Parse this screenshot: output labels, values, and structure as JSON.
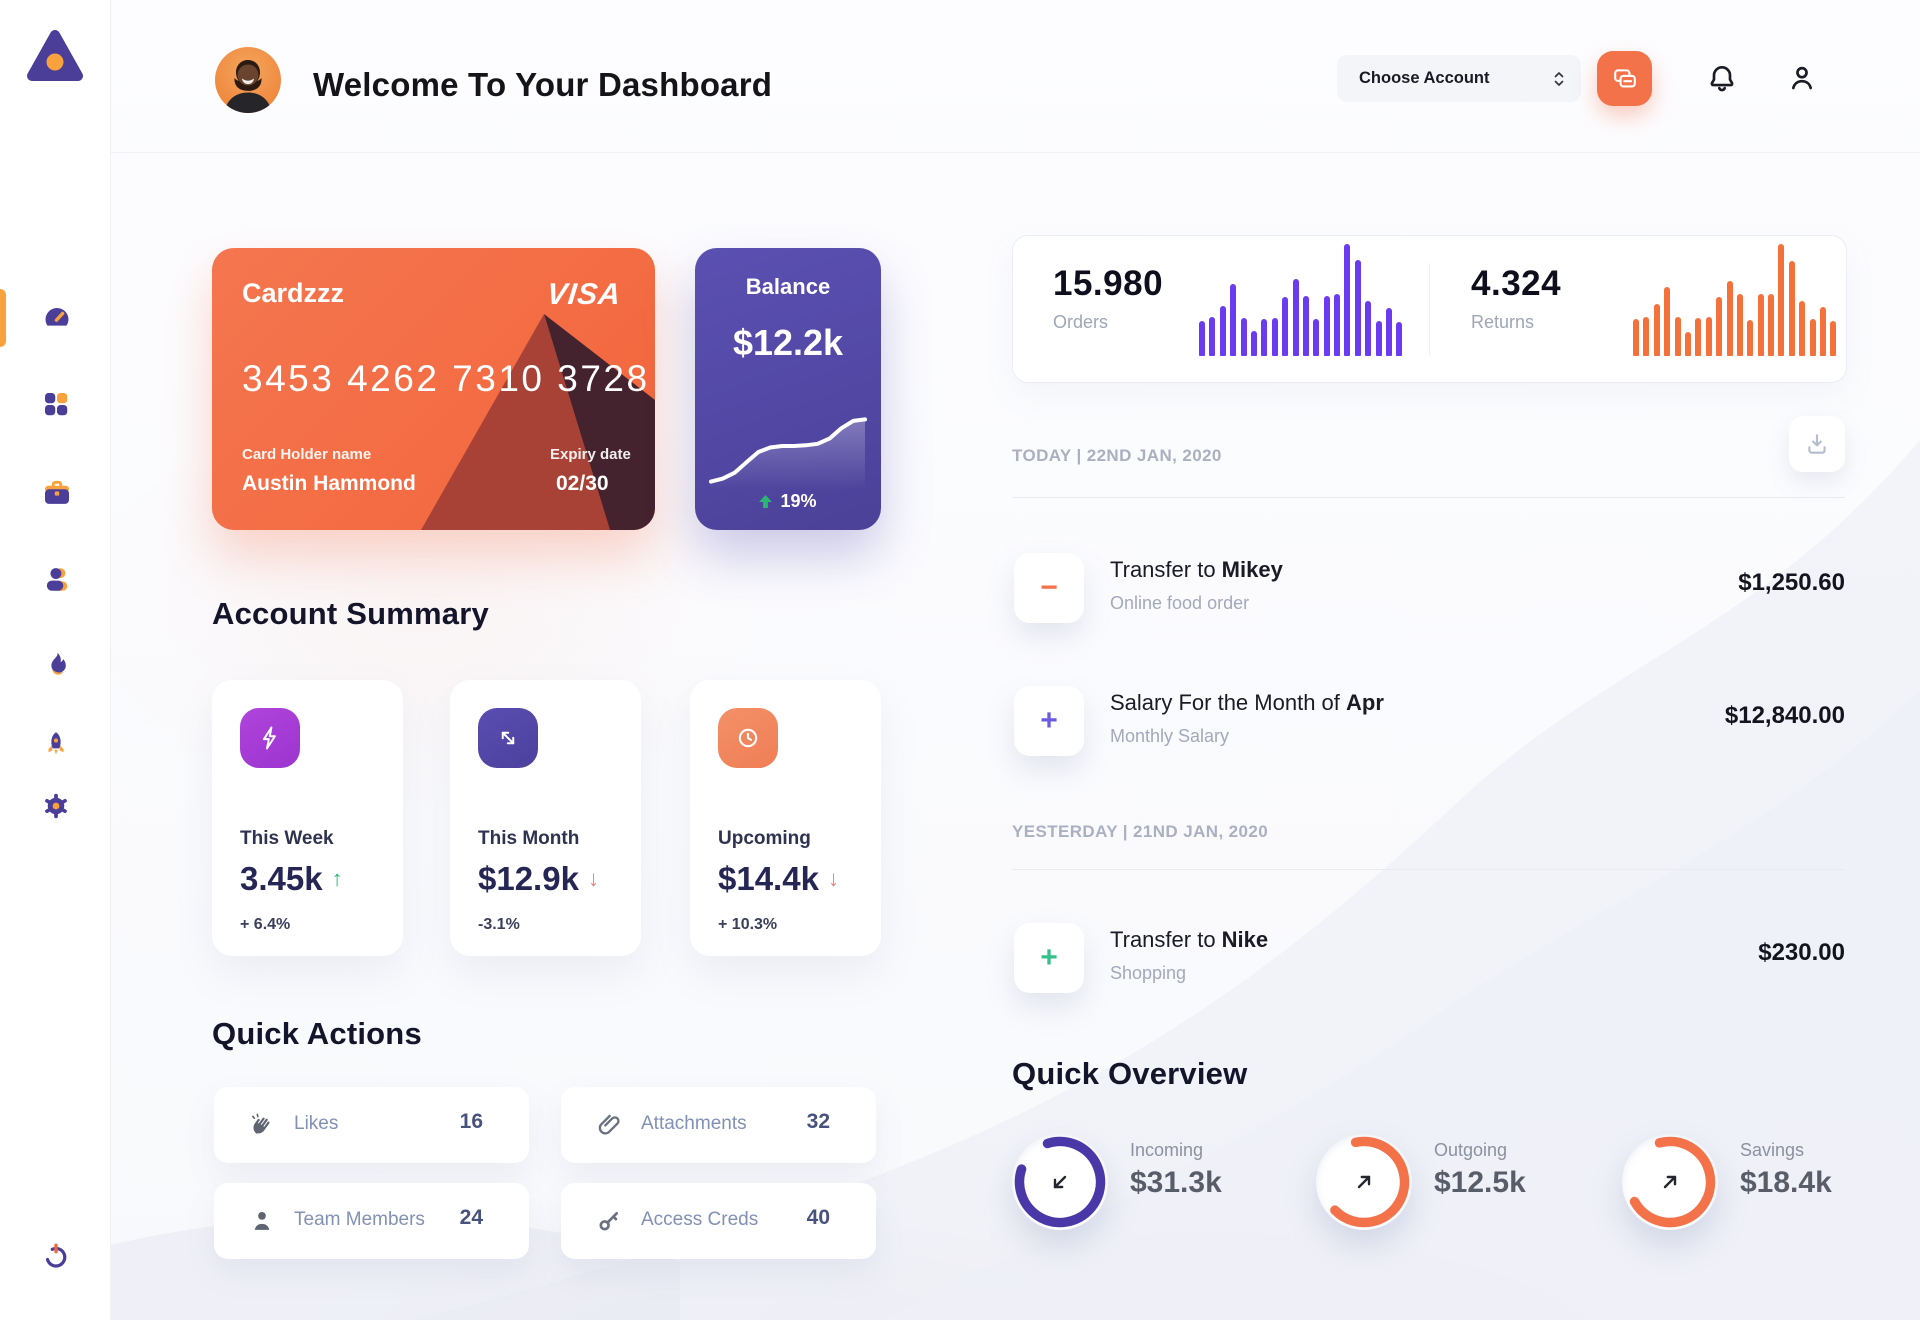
{
  "header": {
    "title": "Welcome To Your Dashboard",
    "account_select": "Choose Account"
  },
  "sidebar": {
    "items": [
      "dashboard",
      "apps",
      "portfolio",
      "team",
      "activity",
      "launch",
      "settings"
    ],
    "footer": "power"
  },
  "credit_card": {
    "name": "Cardzzz",
    "brand": "VISA",
    "number": "3453 4262 7310 3728",
    "holder_label": "Card Holder name",
    "holder_name": "Austin Hammond",
    "expiry_label": "Expiry date",
    "expiry": "02/30"
  },
  "balance_card": {
    "title": "Balance",
    "amount": "$12.2k",
    "change": "19%"
  },
  "stats": {
    "orders": {
      "value": "15.980",
      "label": "Orders"
    },
    "returns": {
      "value": "4.324",
      "label": "Returns"
    }
  },
  "chart_data": [
    {
      "type": "bar",
      "name": "orders-sparkbars",
      "color": "#6B3BF2",
      "values": [
        31,
        35,
        45,
        64,
        34,
        22,
        33,
        34,
        53,
        69,
        54,
        33,
        54,
        55,
        100,
        86,
        49,
        31,
        43,
        30
      ]
    },
    {
      "type": "bar",
      "name": "returns-sparkbars",
      "color": "#F4713C",
      "values": [
        33,
        35,
        46,
        62,
        35,
        21,
        34,
        35,
        53,
        67,
        55,
        32,
        55,
        55,
        100,
        85,
        49,
        33,
        44,
        31
      ]
    },
    {
      "type": "area",
      "name": "balance-sparkline",
      "color": "#FFFFFF",
      "values": [
        6,
        10,
        18,
        32,
        46,
        52,
        54,
        54,
        55,
        57,
        64,
        78,
        88,
        90
      ]
    },
    {
      "type": "donut",
      "name": "incoming-ring",
      "progress": 0.85,
      "color": "#4B38A8"
    },
    {
      "type": "donut",
      "name": "outgoing-ring",
      "progress": 0.66,
      "color": "#F4724A"
    },
    {
      "type": "donut",
      "name": "savings-ring",
      "progress": 0.71,
      "color": "#F4724A"
    }
  ],
  "account_summary": {
    "title": "Account Summary",
    "cards": [
      {
        "period": "This Week",
        "value": "3.45k",
        "arrow": "↑",
        "delta": "+ 6.4%"
      },
      {
        "period": "This Month",
        "value": "$12.9k",
        "arrow": "↓",
        "delta": "-3.1%"
      },
      {
        "period": "Upcoming",
        "value": "$14.4k",
        "arrow": "↓",
        "delta": "+ 10.3%"
      }
    ]
  },
  "quick_actions": {
    "title": "Quick Actions",
    "items": [
      {
        "label": "Likes",
        "count": "16"
      },
      {
        "label": "Attachments",
        "count": "32"
      },
      {
        "label": "Team Members",
        "count": "24"
      },
      {
        "label": "Access Creds",
        "count": "40"
      }
    ]
  },
  "transactions": {
    "groups": [
      {
        "date_label": "TODAY | 22ND JAN, 2020",
        "items": [
          {
            "sign": "−",
            "title_prefix": "Transfer to ",
            "title_bold": "Mikey",
            "subtitle": "Online food order",
            "amount": "$1,250.60"
          },
          {
            "sign": "+",
            "title_prefix": "Salary For the Month of ",
            "title_bold": "Apr",
            "subtitle": "Monthly Salary",
            "amount": "$12,840.00"
          }
        ]
      },
      {
        "date_label": "YESTERDAY | 21ND JAN, 2020",
        "items": [
          {
            "sign": "+",
            "title_prefix": "Transfer to ",
            "title_bold": "Nike",
            "subtitle": "Shopping",
            "amount": "$230.00"
          }
        ]
      }
    ]
  },
  "quick_overview": {
    "title": "Quick Overview",
    "items": [
      {
        "label": "Incoming",
        "value": "$31.3k"
      },
      {
        "label": "Outgoing",
        "value": "$12.5k"
      },
      {
        "label": "Savings",
        "value": "$18.4k"
      }
    ]
  },
  "colors": {
    "primary_orange": "#F4714B",
    "primary_purple": "#5347A5",
    "bar_purple": "#6B3BF2",
    "bar_orange": "#F4713C",
    "green": "#2BB673",
    "red": "#F07B7B",
    "accent_yellow": "#F9A13C"
  }
}
